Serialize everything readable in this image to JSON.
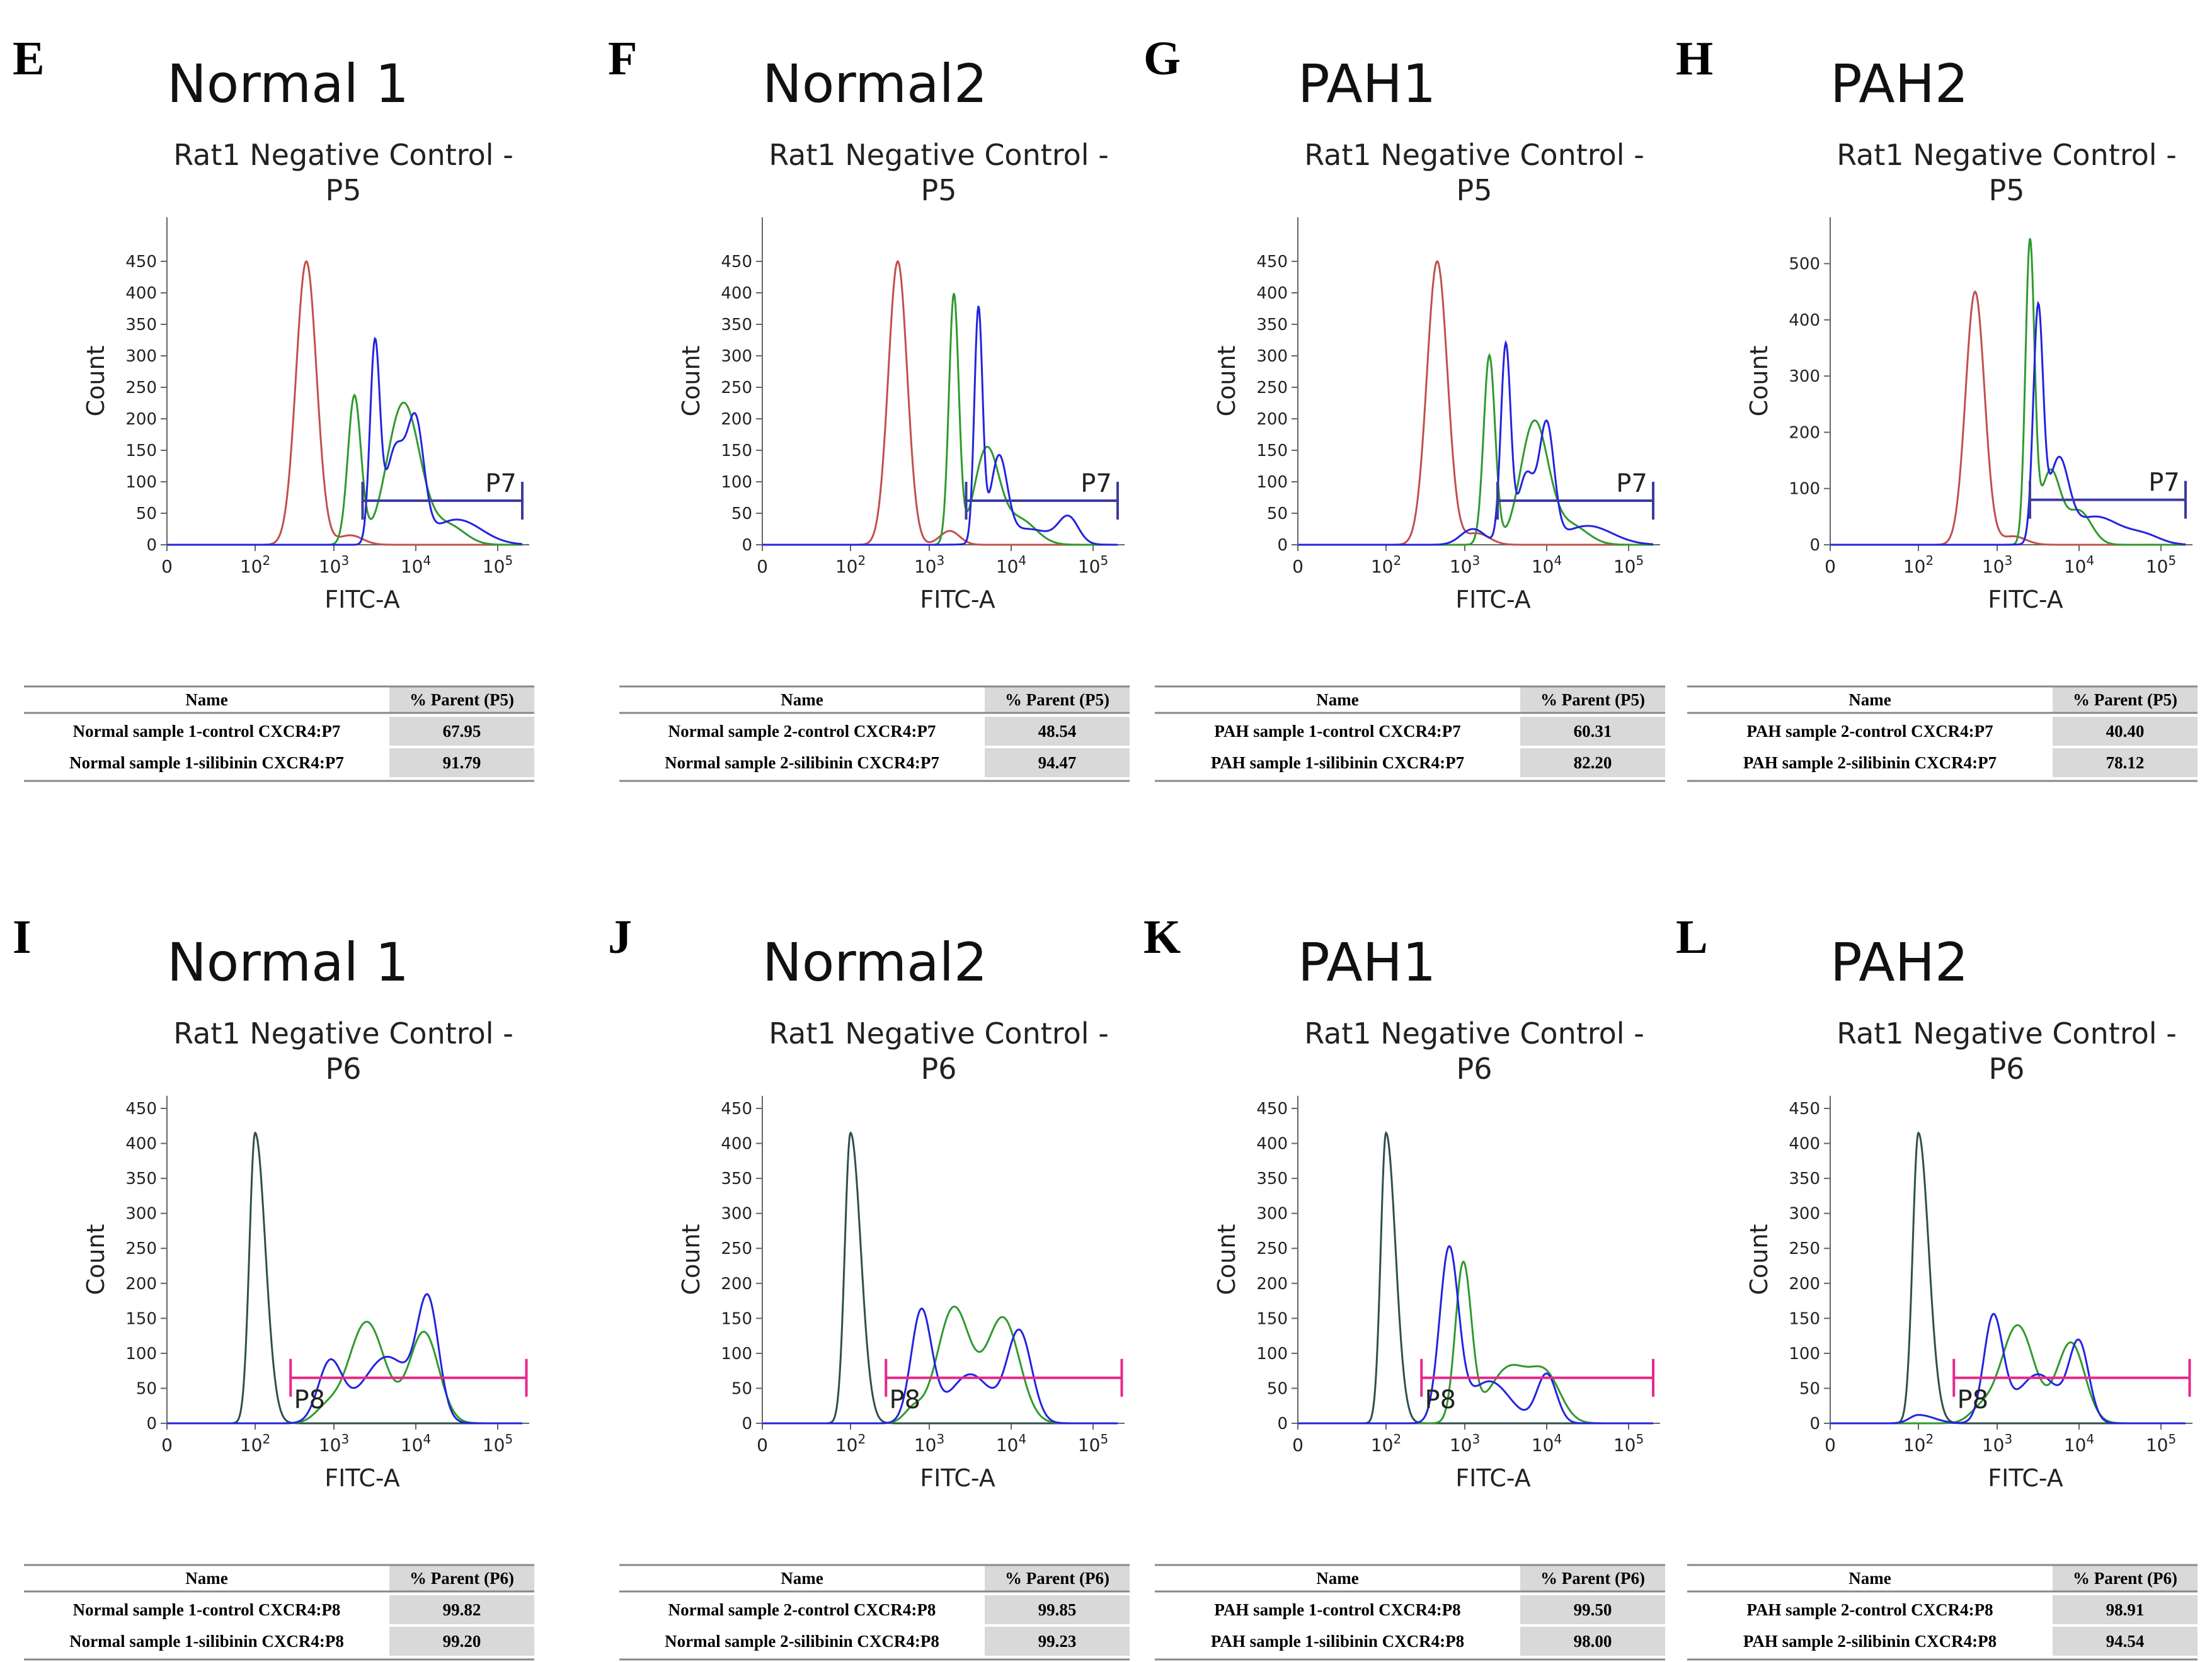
{
  "figure": {
    "type": "flow-cytometry-histogram-panels"
  },
  "chart_data": [
    {
      "panel_letter": "E",
      "title": "Normal 1",
      "subtitle_line1": "Rat1 Negative Control -",
      "subtitle_line2": "P5",
      "type": "line",
      "xlabel": "FITC-A",
      "ylabel": "Count",
      "x_tick_labels": [
        "0",
        "10",
        "10",
        "10",
        "10"
      ],
      "x_tick_exponents": [
        "",
        "2",
        "3",
        "4",
        "5"
      ],
      "y_ticks": [
        0,
        50,
        100,
        150,
        200,
        250,
        300,
        350,
        400,
        450
      ],
      "ylim": [
        0,
        500
      ],
      "gate": {
        "label": "P7",
        "from_log": 3.35,
        "to_log": 5.3,
        "level": 70
      },
      "series": [
        {
          "name": "negative control",
          "color": "#c0504d",
          "peaks": [
            [
              2.65,
              450,
              0.13
            ],
            [
              3.2,
              15,
              0.15
            ]
          ]
        },
        {
          "name": "control",
          "color": "#2e9a2e",
          "peaks": [
            [
              3.25,
              235,
              0.08
            ],
            [
              3.85,
              225,
              0.2
            ],
            [
              4.4,
              30,
              0.2
            ]
          ]
        },
        {
          "name": "silibinin",
          "color": "#2323e0",
          "peaks": [
            [
              3.5,
              310,
              0.06
            ],
            [
              3.75,
              150,
              0.12
            ],
            [
              4.0,
              180,
              0.1
            ],
            [
              4.5,
              40,
              0.3
            ]
          ]
        }
      ],
      "table": {
        "headers": [
          "Name",
          "% Parent (P5)"
        ],
        "rows": [
          [
            "Normal sample 1-control CXCR4:P7",
            "67.95"
          ],
          [
            "Normal sample 1-silibinin CXCR4:P7",
            "91.79"
          ]
        ]
      }
    },
    {
      "panel_letter": "F",
      "title": "Normal2",
      "subtitle_line1": "Rat1 Negative Control -",
      "subtitle_line2": "P5",
      "type": "line",
      "xlabel": "FITC-A",
      "ylabel": "Count",
      "x_tick_labels": [
        "0",
        "10",
        "10",
        "10",
        "10"
      ],
      "x_tick_exponents": [
        "",
        "2",
        "3",
        "4",
        "5"
      ],
      "y_ticks": [
        0,
        50,
        100,
        150,
        200,
        250,
        300,
        350,
        400,
        450
      ],
      "ylim": [
        0,
        500
      ],
      "gate": {
        "label": "P7",
        "from_log": 3.45,
        "to_log": 5.3,
        "level": 70
      },
      "series": [
        {
          "name": "negative control",
          "color": "#c0504d",
          "peaks": [
            [
              2.6,
              450,
              0.12
            ],
            [
              3.25,
              22,
              0.12
            ]
          ]
        },
        {
          "name": "control",
          "color": "#2e9a2e",
          "peaks": [
            [
              3.3,
              395,
              0.06
            ],
            [
              3.7,
              150,
              0.15
            ],
            [
              4.1,
              40,
              0.2
            ]
          ]
        },
        {
          "name": "silibinin",
          "color": "#2323e0",
          "peaks": [
            [
              3.6,
              370,
              0.05
            ],
            [
              3.85,
              130,
              0.1
            ],
            [
              4.7,
              40,
              0.12
            ],
            [
              4.2,
              25,
              0.3
            ]
          ]
        }
      ],
      "table": {
        "headers": [
          "Name",
          "% Parent (P5)"
        ],
        "rows": [
          [
            "Normal sample 2-control CXCR4:P7",
            "48.54"
          ],
          [
            "Normal sample 2-silibinin CXCR4:P7",
            "94.47"
          ]
        ]
      }
    },
    {
      "panel_letter": "G",
      "title": "PAH1",
      "subtitle_line1": "Rat1 Negative Control -",
      "subtitle_line2": "P5",
      "type": "line",
      "xlabel": "FITC-A",
      "ylabel": "Count",
      "x_tick_labels": [
        "0",
        "10",
        "10",
        "10",
        "10"
      ],
      "x_tick_exponents": [
        "",
        "2",
        "3",
        "4",
        "5"
      ],
      "y_ticks": [
        0,
        50,
        100,
        150,
        200,
        250,
        300,
        350,
        400,
        450
      ],
      "ylim": [
        0,
        500
      ],
      "gate": {
        "label": "P7",
        "from_log": 3.4,
        "to_log": 5.3,
        "level": 70
      },
      "series": [
        {
          "name": "negative control",
          "color": "#c0504d",
          "peaks": [
            [
              2.65,
              450,
              0.13
            ],
            [
              3.15,
              18,
              0.15
            ]
          ]
        },
        {
          "name": "control",
          "color": "#2e9a2e",
          "peaks": [
            [
              3.3,
              300,
              0.07
            ],
            [
              3.85,
              195,
              0.17
            ],
            [
              4.3,
              30,
              0.2
            ]
          ]
        },
        {
          "name": "silibinin",
          "color": "#2323e0",
          "peaks": [
            [
              3.5,
              315,
              0.06
            ],
            [
              4.0,
              185,
              0.09
            ],
            [
              3.75,
              110,
              0.1
            ],
            [
              4.5,
              30,
              0.3
            ],
            [
              3.1,
              25,
              0.15
            ]
          ]
        }
      ],
      "table": {
        "headers": [
          "Name",
          "% Parent (P5)"
        ],
        "rows": [
          [
            "PAH sample 1-control CXCR4:P7",
            "60.31"
          ],
          [
            "PAH sample 1-silibinin CXCR4:P7",
            "82.20"
          ]
        ]
      }
    },
    {
      "panel_letter": "H",
      "title": "PAH2",
      "subtitle_line1": "Rat1 Negative Control -",
      "subtitle_line2": "P5",
      "type": "line",
      "xlabel": "FITC-A",
      "ylabel": "Count",
      "x_tick_labels": [
        "0",
        "10",
        "10",
        "10",
        "10"
      ],
      "x_tick_exponents": [
        "",
        "2",
        "3",
        "4",
        "5"
      ],
      "y_ticks": [
        0,
        100,
        200,
        300,
        400,
        500
      ],
      "ylim": [
        0,
        560
      ],
      "gate": {
        "label": "P7",
        "from_log": 3.4,
        "to_log": 5.3,
        "level": 80
      },
      "series": [
        {
          "name": "negative control",
          "color": "#c0504d",
          "peaks": [
            [
              2.72,
              450,
              0.12
            ],
            [
              3.2,
              15,
              0.15
            ]
          ]
        },
        {
          "name": "control",
          "color": "#2e9a2e",
          "peaks": [
            [
              3.4,
              530,
              0.055
            ],
            [
              3.65,
              130,
              0.12
            ],
            [
              4.0,
              60,
              0.15
            ]
          ]
        },
        {
          "name": "silibinin",
          "color": "#2323e0",
          "peaks": [
            [
              3.5,
              410,
              0.06
            ],
            [
              3.75,
              140,
              0.12
            ],
            [
              4.2,
              50,
              0.3
            ],
            [
              4.8,
              15,
              0.2
            ]
          ]
        }
      ],
      "table": {
        "headers": [
          "Name",
          "% Parent (P5)"
        ],
        "rows": [
          [
            "PAH sample 2-control CXCR4:P7",
            "40.40"
          ],
          [
            "PAH sample 2-silibinin CXCR4:P7",
            "78.12"
          ]
        ]
      }
    },
    {
      "panel_letter": "I",
      "title": "Normal 1",
      "subtitle_line1": "Rat1 Negative Control -",
      "subtitle_line2": "P6",
      "type": "line",
      "xlabel": "FITC-A",
      "ylabel": "Count",
      "x_tick_labels": [
        "0",
        "10",
        "10",
        "10",
        "10"
      ],
      "x_tick_exponents": [
        "",
        "2",
        "3",
        "4",
        "5"
      ],
      "y_ticks": [
        0,
        50,
        100,
        150,
        200,
        250,
        300,
        350,
        400,
        450
      ],
      "ylim": [
        0,
        450
      ],
      "gate": {
        "label": "P8",
        "from_log": 2.45,
        "to_log": 5.35,
        "level": 65
      },
      "series": [
        {
          "name": "negative control",
          "color": "#2f4f4f",
          "peaks": [
            [
              2.0,
              415,
              0.13
            ]
          ]
        },
        {
          "name": "control",
          "color": "#2e9a2e",
          "peaks": [
            [
              3.4,
              145,
              0.22
            ],
            [
              4.1,
              130,
              0.18
            ],
            [
              2.9,
              20,
              0.15
            ]
          ]
        },
        {
          "name": "silibinin",
          "color": "#2323e0",
          "peaks": [
            [
              2.95,
              85,
              0.15
            ],
            [
              4.15,
              160,
              0.13
            ],
            [
              3.65,
              95,
              0.3
            ]
          ]
        }
      ],
      "table": {
        "headers": [
          "Name",
          "% Parent (P6)"
        ],
        "rows": [
          [
            "Normal sample 1-control CXCR4:P8",
            "99.82"
          ],
          [
            "Normal sample 1-silibinin CXCR4:P8",
            "99.20"
          ]
        ]
      }
    },
    {
      "panel_letter": "J",
      "title": "Normal2",
      "subtitle_line1": "Rat1 Negative Control -",
      "subtitle_line2": "P6",
      "type": "line",
      "xlabel": "FITC-A",
      "ylabel": "Count",
      "x_tick_labels": [
        "0",
        "10",
        "10",
        "10",
        "10"
      ],
      "x_tick_exponents": [
        "",
        "2",
        "3",
        "4",
        "5"
      ],
      "y_ticks": [
        0,
        50,
        100,
        150,
        200,
        250,
        300,
        350,
        400,
        450
      ],
      "ylim": [
        0,
        450
      ],
      "gate": {
        "label": "P8",
        "from_log": 2.45,
        "to_log": 5.35,
        "level": 65
      },
      "series": [
        {
          "name": "negative control",
          "color": "#2f4f4f",
          "peaks": [
            [
              2.0,
              415,
              0.13
            ]
          ]
        },
        {
          "name": "control",
          "color": "#2e9a2e",
          "peaks": [
            [
              3.3,
              165,
              0.2
            ],
            [
              3.9,
              150,
              0.2
            ],
            [
              2.8,
              20,
              0.12
            ]
          ]
        },
        {
          "name": "silibinin",
          "color": "#2323e0",
          "peaks": [
            [
              2.9,
              160,
              0.13
            ],
            [
              4.1,
              130,
              0.15
            ],
            [
              3.5,
              70,
              0.25
            ]
          ]
        }
      ],
      "table": {
        "headers": [
          "Name",
          "% Parent (P6)"
        ],
        "rows": [
          [
            "Normal sample 2-control CXCR4:P8",
            "99.85"
          ],
          [
            "Normal sample 2-silibinin CXCR4:P8",
            "99.23"
          ]
        ]
      }
    },
    {
      "panel_letter": "K",
      "title": "PAH1",
      "subtitle_line1": "Rat1 Negative Control -",
      "subtitle_line2": "P6",
      "type": "line",
      "xlabel": "FITC-A",
      "ylabel": "Count",
      "x_tick_labels": [
        "0",
        "10",
        "10",
        "10",
        "10"
      ],
      "x_tick_exponents": [
        "",
        "2",
        "3",
        "4",
        "5"
      ],
      "y_ticks": [
        0,
        50,
        100,
        150,
        200,
        250,
        300,
        350,
        400,
        450
      ],
      "ylim": [
        0,
        450
      ],
      "gate": {
        "label": "P8",
        "from_log": 2.45,
        "to_log": 5.3,
        "level": 65
      },
      "series": [
        {
          "name": "negative control",
          "color": "#2f4f4f",
          "peaks": [
            [
              2.0,
              415,
              0.12
            ]
          ]
        },
        {
          "name": "control",
          "color": "#2e9a2e",
          "peaks": [
            [
              2.98,
              225,
              0.1
            ],
            [
              3.55,
              80,
              0.25
            ],
            [
              4.0,
              60,
              0.18
            ]
          ]
        },
        {
          "name": "silibinin",
          "color": "#2323e0",
          "peaks": [
            [
              2.8,
              245,
              0.12
            ],
            [
              3.3,
              60,
              0.25
            ],
            [
              4.0,
              70,
              0.12
            ]
          ]
        }
      ],
      "table": {
        "headers": [
          "Name",
          "% Parent (P6)"
        ],
        "rows": [
          [
            "PAH sample 1-control CXCR4:P8",
            "99.50"
          ],
          [
            "PAH sample 1-silibinin CXCR4:P8",
            "98.00"
          ]
        ]
      }
    },
    {
      "panel_letter": "L",
      "title": "PAH2",
      "subtitle_line1": "Rat1 Negative Control -",
      "subtitle_line2": "P6",
      "type": "line",
      "xlabel": "FITC-A",
      "ylabel": "Count",
      "x_tick_labels": [
        "0",
        "10",
        "10",
        "10",
        "10"
      ],
      "x_tick_exponents": [
        "",
        "2",
        "3",
        "4",
        "5"
      ],
      "y_ticks": [
        0,
        50,
        100,
        150,
        200,
        250,
        300,
        350,
        400,
        450
      ],
      "ylim": [
        0,
        450
      ],
      "gate": {
        "label": "P8",
        "from_log": 2.45,
        "to_log": 5.35,
        "level": 65
      },
      "series": [
        {
          "name": "negative control",
          "color": "#2f4f4f",
          "peaks": [
            [
              2.0,
              415,
              0.13
            ]
          ]
        },
        {
          "name": "control",
          "color": "#2e9a2e",
          "peaks": [
            [
              3.25,
              140,
              0.2
            ],
            [
              3.9,
              115,
              0.17
            ],
            [
              2.8,
              20,
              0.15
            ]
          ]
        },
        {
          "name": "silibinin",
          "color": "#2323e0",
          "peaks": [
            [
              2.95,
              150,
              0.12
            ],
            [
              4.0,
              110,
              0.12
            ],
            [
              3.5,
              70,
              0.25
            ],
            [
              2.0,
              12,
              0.2
            ]
          ]
        }
      ],
      "table": {
        "headers": [
          "Name",
          "% Parent (P6)"
        ],
        "rows": [
          [
            "PAH sample 2-control CXCR4:P8",
            "98.91"
          ],
          [
            "PAH sample 2-silibinin CXCR4:P8",
            "94.54"
          ]
        ]
      }
    }
  ]
}
